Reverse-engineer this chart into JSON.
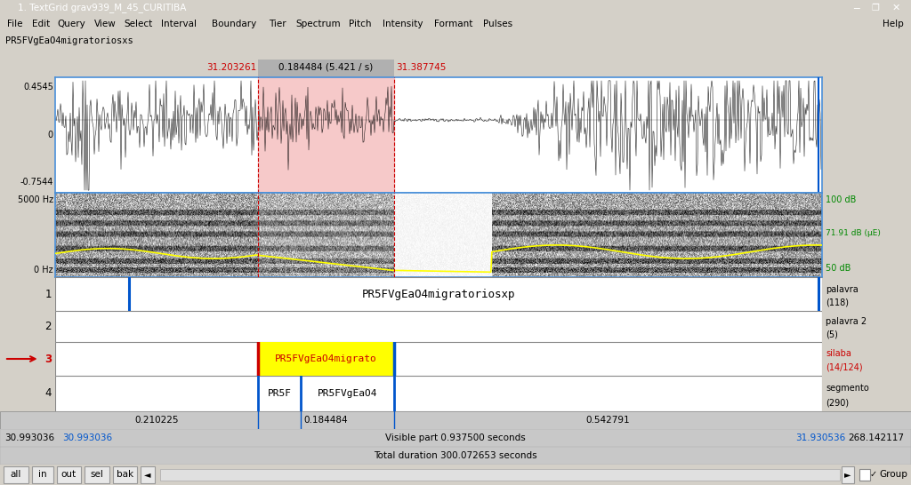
{
  "title_bar": "1. TextGrid grav939_M_45_CURITIBA",
  "menu_items": [
    "File",
    "Edit",
    "Query",
    "View",
    "Select",
    "Interval",
    "Boundary",
    "Tier",
    "Spectrum",
    "Pitch",
    "Intensity",
    "Formant",
    "Pulses"
  ],
  "help_text": "Help",
  "subtitle": "PR5FVgEaO4migratoriosxs",
  "time_left": "31.203261",
  "time_center": "0.184484 (5.421 / s)",
  "time_right": "31.387745",
  "waveform_top": "0.4545",
  "waveform_bottom": "-0.7544",
  "spectrogram_top": "5000 Hz",
  "spectrogram_bottom": "0 Hz",
  "db_top": "100 dB",
  "db_mid": "71.91 dB (μE)",
  "db_bot": "50 dB",
  "tier1_label": "PR5FVgEaO4migratoriosxp",
  "tier3_text": "PR5FVgEaO4migrato",
  "tier4_text1": "PR5F",
  "tier4_text2": "PR5FVgEaO4",
  "bottom_times": [
    "0.210225",
    "0.184484",
    "0.542791"
  ],
  "status_left1": "30.993036",
  "status_left2": "30.993036",
  "status_center": "Visible part 0.937500 seconds",
  "status_right1": "31.930536",
  "status_right2": "268.142117",
  "total_duration": "Total duration 300.072653 seconds",
  "btn_labels": [
    "all",
    "in",
    "out",
    "sel",
    "bak"
  ],
  "bg_color": "#d4d0c8",
  "waveform_bg": "#ffffff",
  "selection_color": "#f5c0c0",
  "title_bar_color": "#0078d7",
  "border_color": "#4a90d9",
  "tier_border": "#888888",
  "red_color": "#cc0000",
  "blue_color": "#0055cc",
  "green_color": "#008800",
  "yellow_color": "#ffff00",
  "time_header_bg": "#c8c8c8",
  "status_bg": "#c8c8c8"
}
